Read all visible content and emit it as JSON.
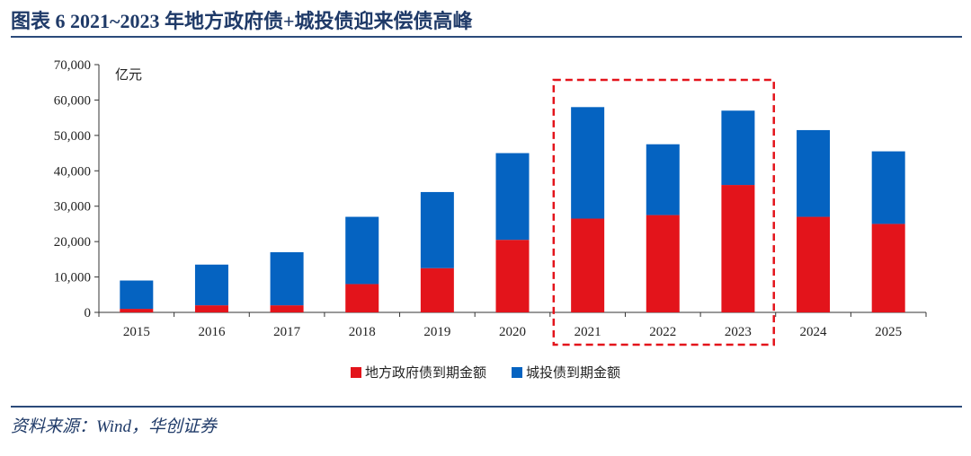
{
  "header": {
    "title": "图表 6   2021~2023 年地方政府债+城投债迎来偿债高峰"
  },
  "footer": {
    "source": "资料来源：Wind，华创证券"
  },
  "colors": {
    "series_gov": "#e3141b",
    "series_lgfv": "#0563c1",
    "highlight": "#e3141b",
    "axis": "#333333"
  },
  "chart_data": {
    "type": "bar",
    "stacked": true,
    "unit_label": "亿元",
    "categories": [
      "2015",
      "2016",
      "2017",
      "2018",
      "2019",
      "2020",
      "2021",
      "2022",
      "2023",
      "2024",
      "2025"
    ],
    "series": [
      {
        "name": "地方政府债到期金额",
        "values": [
          1000,
          2000,
          2000,
          8000,
          12500,
          20500,
          26500,
          27500,
          36000,
          27000,
          25000
        ]
      },
      {
        "name": "城投债到期金额",
        "values": [
          8000,
          11500,
          15000,
          19000,
          21500,
          24500,
          31500,
          20000,
          21000,
          24500,
          20500
        ]
      }
    ],
    "ylim": [
      0,
      70000
    ],
    "yticks": [
      "0",
      "10,000",
      "20,000",
      "30,000",
      "40,000",
      "50,000",
      "60,000",
      "70,000"
    ],
    "highlight_range": [
      "2021",
      "2023"
    ],
    "legend_position": "bottom"
  }
}
